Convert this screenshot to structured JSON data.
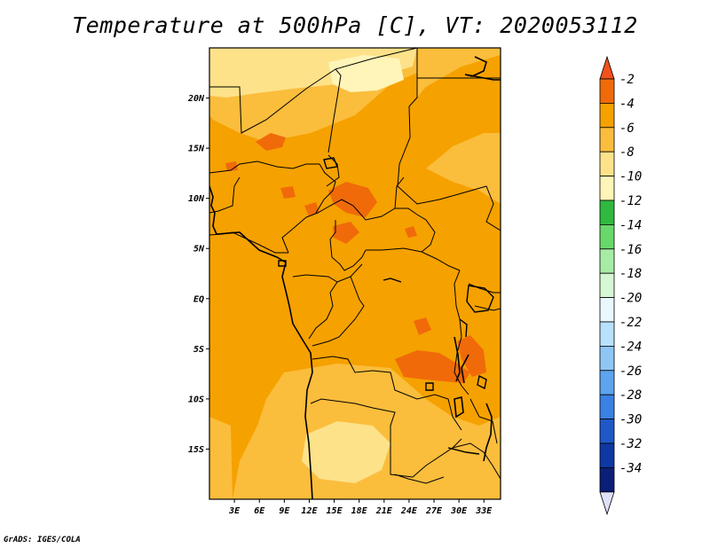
{
  "title": "Temperature at 500hPa [C], VT: 2020053112",
  "footer": "GrADS: IGES/COLA",
  "map": {
    "lon_range": [
      0,
      35
    ],
    "lat_range": [
      -20,
      25
    ],
    "lat_ticks": [
      {
        "value": 20,
        "label": "20N"
      },
      {
        "value": 15,
        "label": "15N"
      },
      {
        "value": 10,
        "label": "10N"
      },
      {
        "value": 5,
        "label": "5N"
      },
      {
        "value": 0,
        "label": "EQ"
      },
      {
        "value": -5,
        "label": "5S"
      },
      {
        "value": -10,
        "label": "10S"
      },
      {
        "value": -15,
        "label": "15S"
      }
    ],
    "lon_ticks": [
      {
        "value": 3,
        "label": "3E"
      },
      {
        "value": 6,
        "label": "6E"
      },
      {
        "value": 9,
        "label": "9E"
      },
      {
        "value": 12,
        "label": "12E"
      },
      {
        "value": 15,
        "label": "15E"
      },
      {
        "value": 18,
        "label": "18E"
      },
      {
        "value": 21,
        "label": "21E"
      },
      {
        "value": 24,
        "label": "24E"
      },
      {
        "value": 27,
        "label": "27E"
      },
      {
        "value": 30,
        "label": "30E"
      },
      {
        "value": 33,
        "label": "33E"
      }
    ],
    "colors": {
      "range_2_4": "#f06a0a",
      "range_4_6": "#f5a100",
      "range_6_8": "#fbbd3c",
      "range_8_10": "#fde28a",
      "range_10_12": "#fff5b8",
      "coastline": "#000000"
    }
  },
  "colorbar": {
    "levels": [
      "-2",
      "-4",
      "-6",
      "-8",
      "-10",
      "-12",
      "-14",
      "-16",
      "-18",
      "-20",
      "-22",
      "-24",
      "-26",
      "-28",
      "-30",
      "-32",
      "-34"
    ],
    "colors": [
      "#f2511c",
      "#f06a0a",
      "#f5a100",
      "#fbbd3c",
      "#fde28a",
      "#fff5b8",
      "#2fba3f",
      "#69d86a",
      "#a7eca4",
      "#d6f7d4",
      "#e8f8ff",
      "#b9e1fb",
      "#8fc6f6",
      "#5ea4ee",
      "#3a81e3",
      "#2058c8",
      "#0e38a4",
      "#0b1f78",
      "#e0e0fa"
    ]
  }
}
